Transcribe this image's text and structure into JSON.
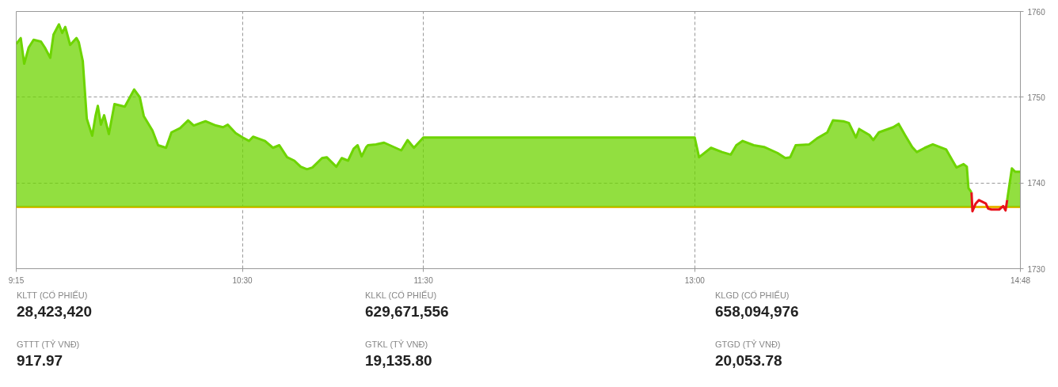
{
  "chart_data": {
    "type": "area",
    "xlim": [
      9.25,
      14.8
    ],
    "ylim": [
      1730,
      1760
    ],
    "xticks": [
      {
        "value": 9.25,
        "label": "9:15"
      },
      {
        "value": 10.5,
        "label": "10:30"
      },
      {
        "value": 11.5,
        "label": "11:30"
      },
      {
        "value": 13,
        "label": "13:00"
      },
      {
        "value": 14.8,
        "label": "14:48"
      }
    ],
    "yticks": [
      1730,
      1740,
      1750,
      1760
    ],
    "grid": true,
    "ref_lines": [
      {
        "axis": "y",
        "value": 1737.2,
        "color": "#e8b400"
      }
    ],
    "series": [
      {
        "color": "#6dd400",
        "x": [
          9.25,
          9.275,
          9.294,
          9.319,
          9.346,
          9.386,
          9.408,
          9.438,
          9.456,
          9.486,
          9.504,
          9.521,
          9.548,
          9.583,
          9.596,
          9.618,
          9.64,
          9.67,
          9.688,
          9.701,
          9.718,
          9.736,
          9.762,
          9.793,
          9.85,
          9.902,
          9.933,
          9.955,
          10.003,
          10.034,
          10.078,
          10.108,
          10.156,
          10.2,
          10.231,
          10.296,
          10.353,
          10.393,
          10.419,
          10.463,
          10.502,
          10.537,
          10.559,
          10.625,
          10.669,
          10.704,
          10.747,
          10.787,
          10.822,
          10.857,
          10.887,
          10.94,
          10.966,
          11.019,
          11.049,
          11.084,
          11.115,
          11.137,
          11.159,
          11.185,
          11.194,
          11.238,
          11.283,
          11.378,
          11.413,
          11.448,
          11.5,
          13.0,
          13.024,
          13.09,
          13.151,
          13.199,
          13.23,
          13.265,
          13.326,
          13.383,
          13.457,
          13.501,
          13.528,
          13.558,
          13.633,
          13.676,
          13.733,
          13.764,
          13.821,
          13.852,
          13.891,
          13.909,
          13.965,
          13.987,
          14.018,
          14.097,
          14.127,
          14.162,
          14.202,
          14.228,
          14.272,
          14.316,
          14.39,
          14.425,
          14.447,
          14.486,
          14.504,
          14.513,
          14.53,
          14.535,
          14.553,
          14.571,
          14.609,
          14.622,
          14.64,
          14.683,
          14.705,
          14.718,
          14.727,
          14.753,
          14.771,
          14.8
        ],
        "values": [
          1756.2,
          1756.9,
          1753.9,
          1755.8,
          1756.7,
          1756.5,
          1755.8,
          1754.6,
          1757.3,
          1758.5,
          1757.5,
          1758.2,
          1756.1,
          1756.9,
          1756.4,
          1754.2,
          1747.5,
          1745.5,
          1747.8,
          1749.0,
          1746.8,
          1747.9,
          1745.7,
          1749.2,
          1748.9,
          1750.9,
          1750.0,
          1747.8,
          1746.1,
          1744.4,
          1744.1,
          1745.9,
          1746.4,
          1747.3,
          1746.7,
          1747.2,
          1746.7,
          1746.5,
          1746.8,
          1745.8,
          1745.3,
          1744.9,
          1745.4,
          1744.9,
          1744.1,
          1744.4,
          1743.0,
          1742.6,
          1741.9,
          1741.6,
          1741.8,
          1742.9,
          1743.0,
          1741.9,
          1742.9,
          1742.6,
          1744.0,
          1744.4,
          1743.1,
          1744.2,
          1744.4,
          1744.5,
          1744.7,
          1743.8,
          1745.0,
          1744.1,
          1745.3,
          1745.3,
          1743.0,
          1744.1,
          1743.6,
          1743.3,
          1744.4,
          1744.9,
          1744.4,
          1744.2,
          1743.5,
          1742.9,
          1743.0,
          1744.4,
          1744.5,
          1745.2,
          1745.9,
          1747.3,
          1747.2,
          1747.0,
          1745.3,
          1746.3,
          1745.6,
          1745.0,
          1745.9,
          1746.5,
          1746.9,
          1745.6,
          1744.2,
          1743.6,
          1744.1,
          1744.5,
          1743.9,
          1742.6,
          1741.8,
          1742.2,
          1741.9,
          1739.4,
          1738.9,
          null,
          null,
          null,
          null,
          null,
          null,
          null,
          null,
          null,
          1738.0,
          1741.7,
          1741.3,
          1741.3
        ]
      },
      {
        "type": "line",
        "color": "#e8101a",
        "x": [
          14.53,
          14.535,
          14.553,
          14.571,
          14.609,
          14.622,
          14.64,
          14.683,
          14.705,
          14.718,
          14.727
        ],
        "values": [
          1738.9,
          1736.7,
          1737.6,
          1738.0,
          1737.6,
          1737.0,
          1736.9,
          1736.9,
          1737.3,
          1736.8,
          1738.0
        ]
      }
    ],
    "annotations": [
      "KLTT (CỔ PHIẾU)",
      "28,423,420",
      "KLKL (CỔ PHIẾU)",
      "629,671,556",
      "KLGD (CỔ PHIẾU)",
      "658,094,976",
      "GTTT (TỶ VNĐ)",
      "917.97",
      "GTKL (TỶ VNĐ)",
      "19,135.80",
      "GTGD (TỶ VNĐ)",
      "20,053.78"
    ]
  }
}
